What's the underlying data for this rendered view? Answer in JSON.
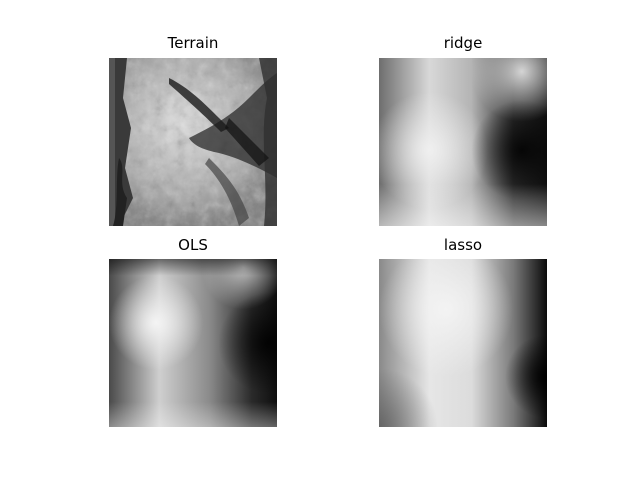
{
  "figure": {
    "panels": [
      {
        "title": "Terrain",
        "colormap": "gray"
      },
      {
        "title": "ridge",
        "colormap": "gray"
      },
      {
        "title": "OLS",
        "colormap": "gray"
      },
      {
        "title": "lasso",
        "colormap": "gray"
      }
    ]
  },
  "chart_data": [
    {
      "type": "heatmap",
      "title": "Terrain",
      "colormap": "gray",
      "axes": "off"
    },
    {
      "type": "heatmap",
      "title": "ridge",
      "colormap": "gray",
      "axes": "off"
    },
    {
      "type": "heatmap",
      "title": "OLS",
      "colormap": "gray",
      "axes": "off"
    },
    {
      "type": "heatmap",
      "title": "lasso",
      "colormap": "gray",
      "axes": "off"
    }
  ]
}
